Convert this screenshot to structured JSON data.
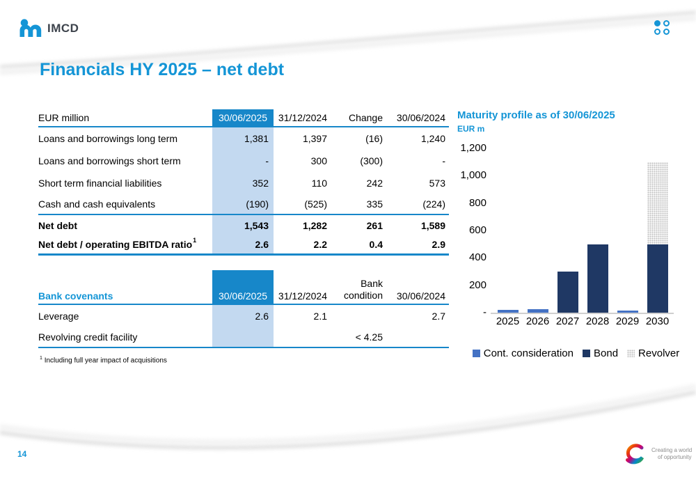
{
  "slide": {
    "title": "Financials HY 2025 – net debt",
    "page_number": "14",
    "brand": {
      "logo_text": "IMCD",
      "tagline_line1": "Creating a world",
      "tagline_line2": "of opportunity"
    }
  },
  "colors": {
    "accent_blue": "#1495d6",
    "table_header_blue": "#1787c9",
    "highlight_column": "#c3d9f0",
    "bond_navy": "#1f3864",
    "cont_blue": "#4472c4",
    "revolver_gray": "#d9d9d9"
  },
  "table1": {
    "header": {
      "label": "EUR million",
      "cols": [
        "30/06/2025",
        "31/12/2024",
        "Change",
        "30/06/2024"
      ]
    },
    "rows": [
      {
        "label": "Loans and borrowings long term",
        "values": [
          "1,381",
          "1,397",
          "(16)",
          "1,240"
        ]
      },
      {
        "label": "Loans and borrowings short term",
        "values": [
          "-",
          "300",
          "(300)",
          "-"
        ]
      },
      {
        "label": "Short term financial liabilities",
        "values": [
          "352",
          "110",
          "242",
          "573"
        ]
      },
      {
        "label": "Cash and cash equivalents",
        "values": [
          "(190)",
          "(525)",
          "335",
          "(224)"
        ]
      },
      {
        "label": "Net debt",
        "values": [
          "1,543",
          "1,282",
          "261",
          "1,589"
        ]
      },
      {
        "label": "Net debt / operating EBITDA ratio",
        "sup": "1",
        "values": [
          "2.6",
          "2.2",
          "0.4",
          "2.9"
        ]
      }
    ]
  },
  "table2": {
    "header": {
      "label": "Bank covenants",
      "cols": [
        "30/06/2025",
        "31/12/2024",
        "Bank\ncondition",
        "30/06/2024"
      ]
    },
    "rows": [
      {
        "label": "Leverage",
        "values": [
          "2.6",
          "2.1",
          "",
          "2.7"
        ]
      },
      {
        "label": "Revolving credit facility",
        "values": [
          "",
          "",
          "< 4.25",
          ""
        ]
      }
    ]
  },
  "footnote": {
    "marker": "1",
    "text": "Including full year impact of acquisitions"
  },
  "chart_data": {
    "type": "bar",
    "stacked": true,
    "title": "Maturity profile as of 30/06/2025",
    "ylabel": "EUR m",
    "categories": [
      "2025",
      "2026",
      "2027",
      "2028",
      "2029",
      "2030"
    ],
    "series": [
      {
        "name": "Cont. consideration",
        "color": "#4472c4",
        "values": [
          20,
          25,
          0,
          0,
          15,
          0
        ]
      },
      {
        "name": "Bond",
        "color": "#1f3864",
        "values": [
          0,
          0,
          300,
          500,
          0,
          500
        ]
      },
      {
        "name": "Revolver",
        "color": "pattern-gray-dots",
        "values": [
          0,
          0,
          0,
          0,
          0,
          600
        ]
      }
    ],
    "ylim": [
      0,
      1200
    ],
    "yticks": [
      0,
      200,
      400,
      600,
      800,
      1000,
      1200
    ],
    "ytick_labels": [
      "-",
      "200",
      "400",
      "600",
      "800",
      "1,000",
      "1,200"
    ],
    "legend_position": "bottom",
    "grid": false
  }
}
